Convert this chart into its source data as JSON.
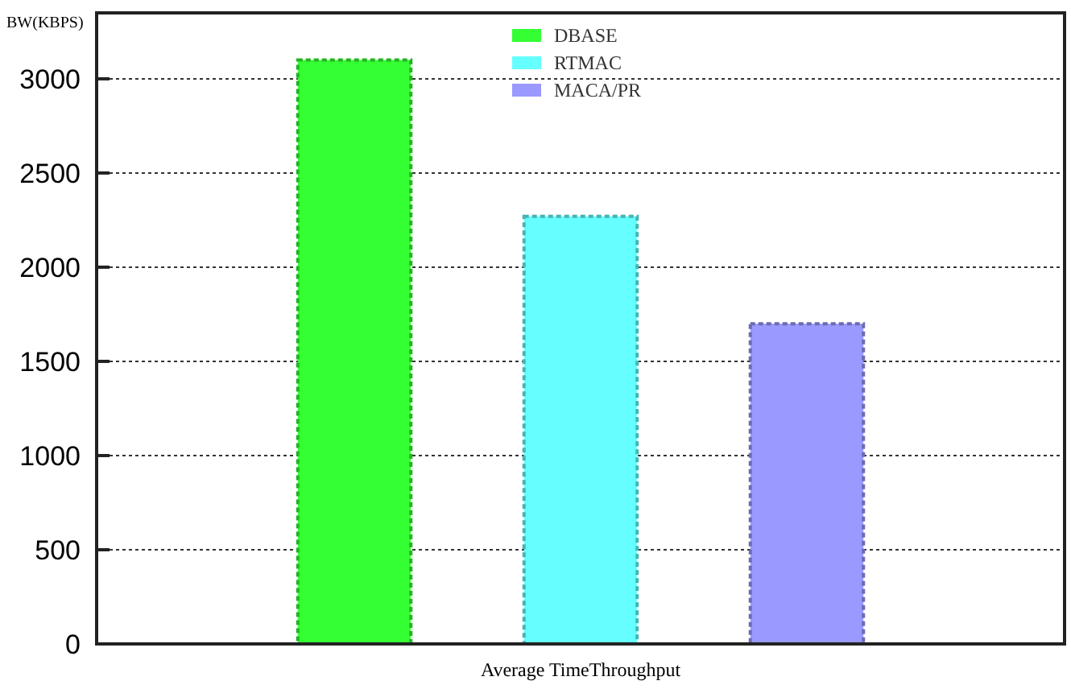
{
  "chart_data": {
    "type": "bar",
    "xlabel": "Average TimeThroughput",
    "ylabel": "BW(KBPS)",
    "categories": [
      null
    ],
    "series": [
      {
        "name": "DBASE",
        "color": "#33ff33",
        "values": [
          3100
        ]
      },
      {
        "name": "RTMAC",
        "color": "#66ffff",
        "values": [
          2270
        ]
      },
      {
        "name": "MACA/PR",
        "color": "#9999ff",
        "values": [
          1700
        ]
      }
    ],
    "ylim": [
      0,
      3350
    ],
    "yticks": [
      0,
      500,
      1000,
      1500,
      2000,
      2500,
      3000
    ],
    "grid": "y",
    "legend": "top"
  }
}
